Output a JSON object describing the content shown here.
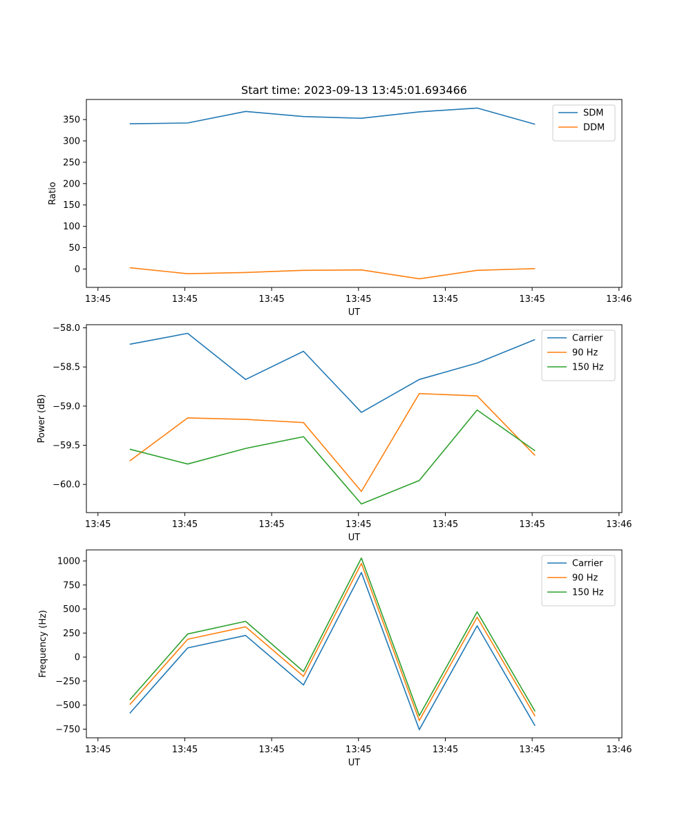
{
  "chart_data": [
    {
      "type": "line",
      "title": "Start time: 2023-09-13 13:45:01.693466",
      "xlabel": "UT",
      "ylabel": "Ratio",
      "xlim": [
        -0.75,
        8.5
      ],
      "ylim": [
        -43,
        397
      ],
      "x_ticks": [
        {
          "pos": -0.55,
          "label": "13:45"
        },
        {
          "pos": 0.95,
          "label": "13:45"
        },
        {
          "pos": 2.45,
          "label": "13:45"
        },
        {
          "pos": 3.95,
          "label": "13:45"
        },
        {
          "pos": 5.45,
          "label": "13:45"
        },
        {
          "pos": 6.95,
          "label": "13:45"
        },
        {
          "pos": 8.45,
          "label": "13:46"
        }
      ],
      "y_ticks": [
        {
          "value": 0,
          "label": "0"
        },
        {
          "value": 50,
          "label": "50"
        },
        {
          "value": 100,
          "label": "100"
        },
        {
          "value": 150,
          "label": "150"
        },
        {
          "value": 200,
          "label": "200"
        },
        {
          "value": 250,
          "label": "250"
        },
        {
          "value": 300,
          "label": "300"
        },
        {
          "value": 350,
          "label": "350"
        }
      ],
      "x": [
        0,
        1,
        2,
        3,
        4,
        5,
        6,
        7
      ],
      "series": [
        {
          "name": "SDM",
          "color": "#1f77b4",
          "values": [
            340,
            342,
            369,
            357,
            353,
            368,
            377,
            339
          ]
        },
        {
          "name": "DDM",
          "color": "#ff7f0e",
          "values": [
            3,
            -11,
            -8,
            -3,
            -2,
            -23,
            -3,
            1
          ]
        }
      ],
      "legend": "top-right"
    },
    {
      "type": "line",
      "title": "",
      "xlabel": "UT",
      "ylabel": "Power (dB)",
      "xlim": [
        -0.75,
        8.5
      ],
      "ylim": [
        -60.36,
        -57.96
      ],
      "x_ticks": [
        {
          "pos": -0.55,
          "label": "13:45"
        },
        {
          "pos": 0.95,
          "label": "13:45"
        },
        {
          "pos": 2.45,
          "label": "13:45"
        },
        {
          "pos": 3.95,
          "label": "13:45"
        },
        {
          "pos": 5.45,
          "label": "13:45"
        },
        {
          "pos": 6.95,
          "label": "13:45"
        },
        {
          "pos": 8.45,
          "label": "13:46"
        }
      ],
      "y_ticks": [
        {
          "value": -58.0,
          "label": "−58.0"
        },
        {
          "value": -58.5,
          "label": "−58.5"
        },
        {
          "value": -59.0,
          "label": "−59.0"
        },
        {
          "value": -59.5,
          "label": "−59.5"
        },
        {
          "value": -60.0,
          "label": "−60.0"
        }
      ],
      "x": [
        0,
        1,
        2,
        3,
        4,
        5,
        6,
        7
      ],
      "series": [
        {
          "name": "Carrier",
          "color": "#1f77b4",
          "values": [
            -58.21,
            -58.07,
            -58.66,
            -58.3,
            -59.08,
            -58.66,
            -58.45,
            -58.15
          ]
        },
        {
          "name": "90 Hz",
          "color": "#ff7f0e",
          "values": [
            -59.7,
            -59.15,
            -59.17,
            -59.21,
            -60.09,
            -58.84,
            -58.87,
            -59.63
          ]
        },
        {
          "name": "150 Hz",
          "color": "#2ca02c",
          "values": [
            -59.55,
            -59.74,
            -59.54,
            -59.39,
            -60.25,
            -59.95,
            -59.05,
            -59.57
          ]
        }
      ],
      "legend": "top-right"
    },
    {
      "type": "line",
      "title": "",
      "xlabel": "UT",
      "ylabel": "Frequency (Hz)",
      "xlim": [
        -0.75,
        8.5
      ],
      "ylim": [
        -840,
        1115
      ],
      "x_ticks": [
        {
          "pos": -0.55,
          "label": "13:45"
        },
        {
          "pos": 0.95,
          "label": "13:45"
        },
        {
          "pos": 2.45,
          "label": "13:45"
        },
        {
          "pos": 3.95,
          "label": "13:45"
        },
        {
          "pos": 5.45,
          "label": "13:45"
        },
        {
          "pos": 6.95,
          "label": "13:45"
        },
        {
          "pos": 8.45,
          "label": "13:46"
        }
      ],
      "y_ticks": [
        {
          "value": 1000,
          "label": "1000"
        },
        {
          "value": 750,
          "label": "750"
        },
        {
          "value": 500,
          "label": "500"
        },
        {
          "value": 250,
          "label": "250"
        },
        {
          "value": 0,
          "label": "0"
        },
        {
          "value": -250,
          "label": "−250"
        },
        {
          "value": -500,
          "label": "−500"
        },
        {
          "value": -750,
          "label": "−750"
        }
      ],
      "x": [
        0,
        1,
        2,
        3,
        4,
        5,
        6,
        7
      ],
      "series": [
        {
          "name": "Carrier",
          "color": "#1f77b4",
          "values": [
            -585,
            95,
            225,
            -290,
            880,
            -755,
            325,
            -715
          ]
        },
        {
          "name": "90 Hz",
          "color": "#ff7f0e",
          "values": [
            -495,
            185,
            315,
            -200,
            975,
            -660,
            415,
            -615
          ]
        },
        {
          "name": "150 Hz",
          "color": "#2ca02c",
          "values": [
            -445,
            240,
            372,
            -150,
            1030,
            -610,
            470,
            -565
          ]
        }
      ],
      "legend": "top-right"
    }
  ]
}
